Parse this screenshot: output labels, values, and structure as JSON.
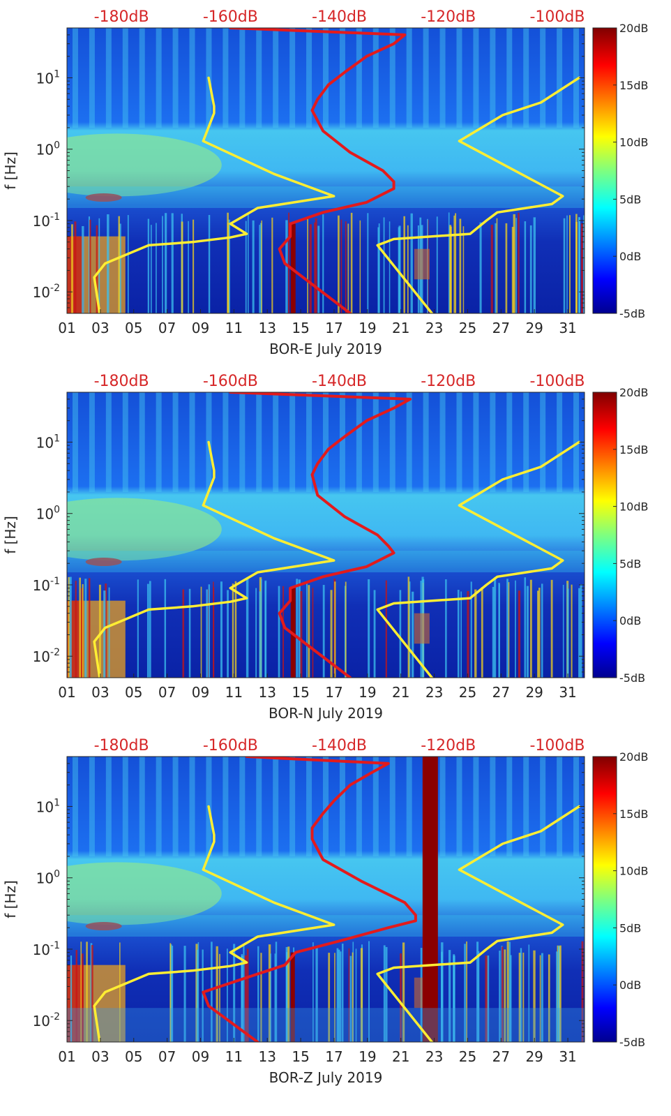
{
  "colors": {
    "red_curve": "#e31a1c",
    "yellow_curve": "#ffee33",
    "top_label": "#d62728",
    "text": "#262626"
  },
  "chart_data": [
    {
      "type": "heatmap",
      "title": "",
      "xlabel": "BOR-E July 2019",
      "ylabel": "f [Hz]",
      "x_ticks": [
        "01",
        "03",
        "05",
        "07",
        "09",
        "11",
        "13",
        "15",
        "17",
        "19",
        "21",
        "23",
        "25",
        "27",
        "29",
        "31"
      ],
      "x_range": [
        1,
        32
      ],
      "y_scale": "log",
      "ylim": [
        0.005,
        50
      ],
      "y_ticks": [
        {
          "mant": "10",
          "exp": "-2",
          "value": 0.01
        },
        {
          "mant": "10",
          "exp": "-1",
          "value": 0.1
        },
        {
          "mant": "10",
          "exp": "0",
          "value": 1
        },
        {
          "mant": "10",
          "exp": "1",
          "value": 10
        }
      ],
      "top_axis_labels": [
        "-180dB",
        "-160dB",
        "-140dB",
        "-120dB",
        "-100dB"
      ],
      "top_axis_range": [
        -190,
        -95
      ],
      "colorbar": {
        "ticks": [
          "20dB",
          "15dB",
          "10dB",
          "5dB",
          "0dB",
          "-5dB"
        ],
        "range": [
          -5,
          20
        ]
      },
      "series": [
        {
          "color": "#ffee33",
          "points": [
            [
              -184,
              0.005
            ],
            [
              -185,
              0.016
            ],
            [
              -183,
              0.025
            ],
            [
              -175,
              0.045
            ],
            [
              -167,
              0.05
            ],
            [
              -160,
              0.058
            ],
            [
              -157,
              0.065
            ],
            [
              -160,
              0.09
            ],
            [
              -155,
              0.15
            ],
            [
              -141,
              0.22
            ],
            [
              -152,
              0.45
            ],
            [
              -165,
              1.3
            ],
            [
              -163,
              3.2
            ],
            [
              -163,
              4
            ],
            [
              -164,
              10
            ]
          ]
        },
        {
          "color": "#ffee33",
          "points": [
            [
              -123,
              0.005
            ],
            [
              -133,
              0.045
            ],
            [
              -130,
              0.055
            ],
            [
              -116,
              0.065
            ],
            [
              -113,
              0.1
            ],
            [
              -111,
              0.13
            ],
            [
              -101,
              0.17
            ],
            [
              -99,
              0.22
            ],
            [
              -118,
              1.3
            ],
            [
              -110,
              3
            ],
            [
              -103,
              4.5
            ],
            [
              -96,
              10
            ]
          ]
        },
        {
          "color": "#e31a1c",
          "points": [
            [
              -138,
              0.005
            ],
            [
              -150,
              0.025
            ],
            [
              -151,
              0.04
            ],
            [
              -149,
              0.06
            ],
            [
              -149,
              0.09
            ],
            [
              -143,
              0.13
            ],
            [
              -135,
              0.18
            ],
            [
              -130,
              0.28
            ],
            [
              -130,
              0.35
            ],
            [
              -132,
              0.5
            ],
            [
              -138,
              0.9
            ],
            [
              -143,
              1.8
            ],
            [
              -145,
              3.5
            ],
            [
              -144,
              5
            ],
            [
              -142,
              8
            ],
            [
              -139,
              12
            ],
            [
              -135,
              20
            ],
            [
              -130,
              30
            ],
            [
              -128,
              40
            ],
            [
              -160,
              50
            ]
          ]
        }
      ]
    },
    {
      "type": "heatmap",
      "title": "",
      "xlabel": "BOR-N July 2019",
      "ylabel": "f [Hz]",
      "x_ticks": [
        "01",
        "03",
        "05",
        "07",
        "09",
        "11",
        "13",
        "15",
        "17",
        "19",
        "21",
        "23",
        "25",
        "27",
        "29",
        "31"
      ],
      "x_range": [
        1,
        32
      ],
      "y_scale": "log",
      "ylim": [
        0.005,
        50
      ],
      "y_ticks": [
        {
          "mant": "10",
          "exp": "-2",
          "value": 0.01
        },
        {
          "mant": "10",
          "exp": "-1",
          "value": 0.1
        },
        {
          "mant": "10",
          "exp": "0",
          "value": 1
        },
        {
          "mant": "10",
          "exp": "1",
          "value": 10
        }
      ],
      "top_axis_labels": [
        "-180dB",
        "-160dB",
        "-140dB",
        "-120dB",
        "-100dB"
      ],
      "top_axis_range": [
        -190,
        -95
      ],
      "colorbar": {
        "ticks": [
          "20dB",
          "15dB",
          "10dB",
          "5dB",
          "0dB",
          "-5dB"
        ],
        "range": [
          -5,
          20
        ]
      },
      "series": [
        {
          "color": "#ffee33",
          "points": [
            [
              -184,
              0.005
            ],
            [
              -185,
              0.016
            ],
            [
              -183,
              0.025
            ],
            [
              -175,
              0.045
            ],
            [
              -167,
              0.05
            ],
            [
              -160,
              0.058
            ],
            [
              -157,
              0.065
            ],
            [
              -160,
              0.09
            ],
            [
              -155,
              0.15
            ],
            [
              -141,
              0.22
            ],
            [
              -152,
              0.45
            ],
            [
              -165,
              1.3
            ],
            [
              -163,
              3.2
            ],
            [
              -163,
              4
            ],
            [
              -164,
              10
            ]
          ]
        },
        {
          "color": "#ffee33",
          "points": [
            [
              -123,
              0.005
            ],
            [
              -133,
              0.045
            ],
            [
              -130,
              0.055
            ],
            [
              -116,
              0.065
            ],
            [
              -113,
              0.1
            ],
            [
              -111,
              0.13
            ],
            [
              -101,
              0.17
            ],
            [
              -99,
              0.22
            ],
            [
              -118,
              1.3
            ],
            [
              -110,
              3
            ],
            [
              -103,
              4.5
            ],
            [
              -96,
              10
            ]
          ]
        },
        {
          "color": "#e31a1c",
          "points": [
            [
              -138,
              0.005
            ],
            [
              -150,
              0.025
            ],
            [
              -151,
              0.04
            ],
            [
              -149,
              0.06
            ],
            [
              -149,
              0.09
            ],
            [
              -143,
              0.13
            ],
            [
              -135,
              0.18
            ],
            [
              -130,
              0.28
            ],
            [
              -131,
              0.35
            ],
            [
              -133,
              0.5
            ],
            [
              -139,
              0.9
            ],
            [
              -144,
              1.8
            ],
            [
              -145,
              3.5
            ],
            [
              -144,
              5
            ],
            [
              -142,
              8
            ],
            [
              -139,
              12
            ],
            [
              -135,
              20
            ],
            [
              -130,
              30
            ],
            [
              -127,
              40
            ],
            [
              -160,
              50
            ]
          ]
        }
      ]
    },
    {
      "type": "heatmap",
      "title": "",
      "xlabel": "BOR-Z July 2019",
      "ylabel": "f [Hz]",
      "x_ticks": [
        "01",
        "03",
        "05",
        "07",
        "09",
        "11",
        "13",
        "15",
        "17",
        "19",
        "21",
        "23",
        "25",
        "27",
        "29",
        "31"
      ],
      "x_range": [
        1,
        32
      ],
      "y_scale": "log",
      "ylim": [
        0.005,
        50
      ],
      "y_ticks": [
        {
          "mant": "10",
          "exp": "-2",
          "value": 0.01
        },
        {
          "mant": "10",
          "exp": "-1",
          "value": 0.1
        },
        {
          "mant": "10",
          "exp": "0",
          "value": 1
        },
        {
          "mant": "10",
          "exp": "1",
          "value": 10
        }
      ],
      "top_axis_labels": [
        "-180dB",
        "-160dB",
        "-140dB",
        "-120dB",
        "-100dB"
      ],
      "top_axis_range": [
        -190,
        -95
      ],
      "colorbar": {
        "ticks": [
          "20dB",
          "15dB",
          "10dB",
          "5dB",
          "0dB",
          "-5dB"
        ],
        "range": [
          -5,
          20
        ]
      },
      "series": [
        {
          "color": "#ffee33",
          "points": [
            [
              -184,
              0.005
            ],
            [
              -185,
              0.016
            ],
            [
              -183,
              0.025
            ],
            [
              -175,
              0.045
            ],
            [
              -167,
              0.05
            ],
            [
              -160,
              0.058
            ],
            [
              -157,
              0.065
            ],
            [
              -160,
              0.09
            ],
            [
              -155,
              0.15
            ],
            [
              -141,
              0.22
            ],
            [
              -152,
              0.45
            ],
            [
              -165,
              1.3
            ],
            [
              -163,
              3.2
            ],
            [
              -163,
              4
            ],
            [
              -164,
              10
            ]
          ]
        },
        {
          "color": "#ffee33",
          "points": [
            [
              -123,
              0.005
            ],
            [
              -133,
              0.045
            ],
            [
              -130,
              0.055
            ],
            [
              -116,
              0.065
            ],
            [
              -113,
              0.1
            ],
            [
              -111,
              0.13
            ],
            [
              -101,
              0.17
            ],
            [
              -99,
              0.22
            ],
            [
              -118,
              1.3
            ],
            [
              -110,
              3
            ],
            [
              -103,
              4.5
            ],
            [
              -96,
              10
            ]
          ]
        },
        {
          "color": "#e31a1c",
          "points": [
            [
              -155,
              0.005
            ],
            [
              -164,
              0.016
            ],
            [
              -165,
              0.025
            ],
            [
              -157,
              0.04
            ],
            [
              -150,
              0.06
            ],
            [
              -148,
              0.09
            ],
            [
              -140,
              0.13
            ],
            [
              -131,
              0.2
            ],
            [
              -126,
              0.25
            ],
            [
              -126,
              0.3
            ],
            [
              -128,
              0.45
            ],
            [
              -136,
              0.9
            ],
            [
              -143,
              1.8
            ],
            [
              -145,
              3.5
            ],
            [
              -145,
              5
            ],
            [
              -143,
              8
            ],
            [
              -141,
              12
            ],
            [
              -138,
              20
            ],
            [
              -134,
              30
            ],
            [
              -131,
              40
            ],
            [
              -157,
              50
            ]
          ]
        }
      ]
    }
  ]
}
